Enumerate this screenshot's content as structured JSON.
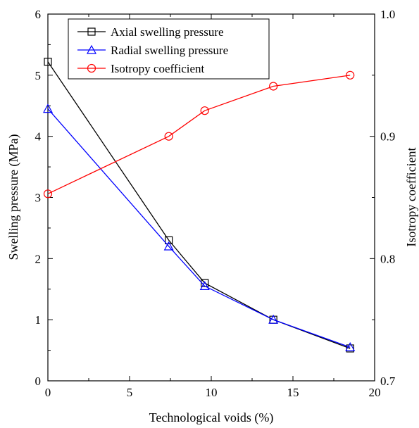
{
  "chart_data": {
    "type": "line",
    "xlabel": "Technological voids (%)",
    "ylabel_left": "Swelling pressure (MPa)",
    "ylabel_right": "Isotropy coefficient",
    "xlim": [
      0,
      20
    ],
    "ylim_left": [
      0,
      6
    ],
    "ylim_right": [
      0.7,
      1.0
    ],
    "x_ticks": [
      "0",
      "5",
      "10",
      "15",
      "20"
    ],
    "y_left_ticks": [
      "0",
      "1",
      "2",
      "3",
      "4",
      "5",
      "6"
    ],
    "y_right_ticks": [
      "0.7",
      "0.8",
      "0.9",
      "1.0"
    ],
    "grid": false,
    "legend_position": "top-left",
    "series": [
      {
        "name": "Axial swelling pressure",
        "axis": "left",
        "marker": "square",
        "color": "#000000",
        "points": [
          {
            "x": 0,
            "y": 5.22
          },
          {
            "x": 7.4,
            "y": 2.3
          },
          {
            "x": 9.6,
            "y": 1.6
          },
          {
            "x": 13.8,
            "y": 1.0
          },
          {
            "x": 18.5,
            "y": 0.53
          }
        ]
      },
      {
        "name": "Radial swelling pressure",
        "axis": "left",
        "marker": "triangle",
        "color": "#0000ff",
        "points": [
          {
            "x": 0,
            "y": 4.45
          },
          {
            "x": 7.4,
            "y": 2.2
          },
          {
            "x": 9.6,
            "y": 1.55
          },
          {
            "x": 13.8,
            "y": 1.0
          },
          {
            "x": 18.5,
            "y": 0.55
          }
        ]
      },
      {
        "name": "Isotropy coefficient",
        "axis": "right",
        "marker": "circle",
        "color": "#ff0000",
        "points": [
          {
            "x": 0,
            "y": 0.853
          },
          {
            "x": 7.4,
            "y": 0.9
          },
          {
            "x": 9.6,
            "y": 0.921
          },
          {
            "x": 13.8,
            "y": 0.941
          },
          {
            "x": 18.5,
            "y": 0.95
          }
        ]
      }
    ]
  }
}
